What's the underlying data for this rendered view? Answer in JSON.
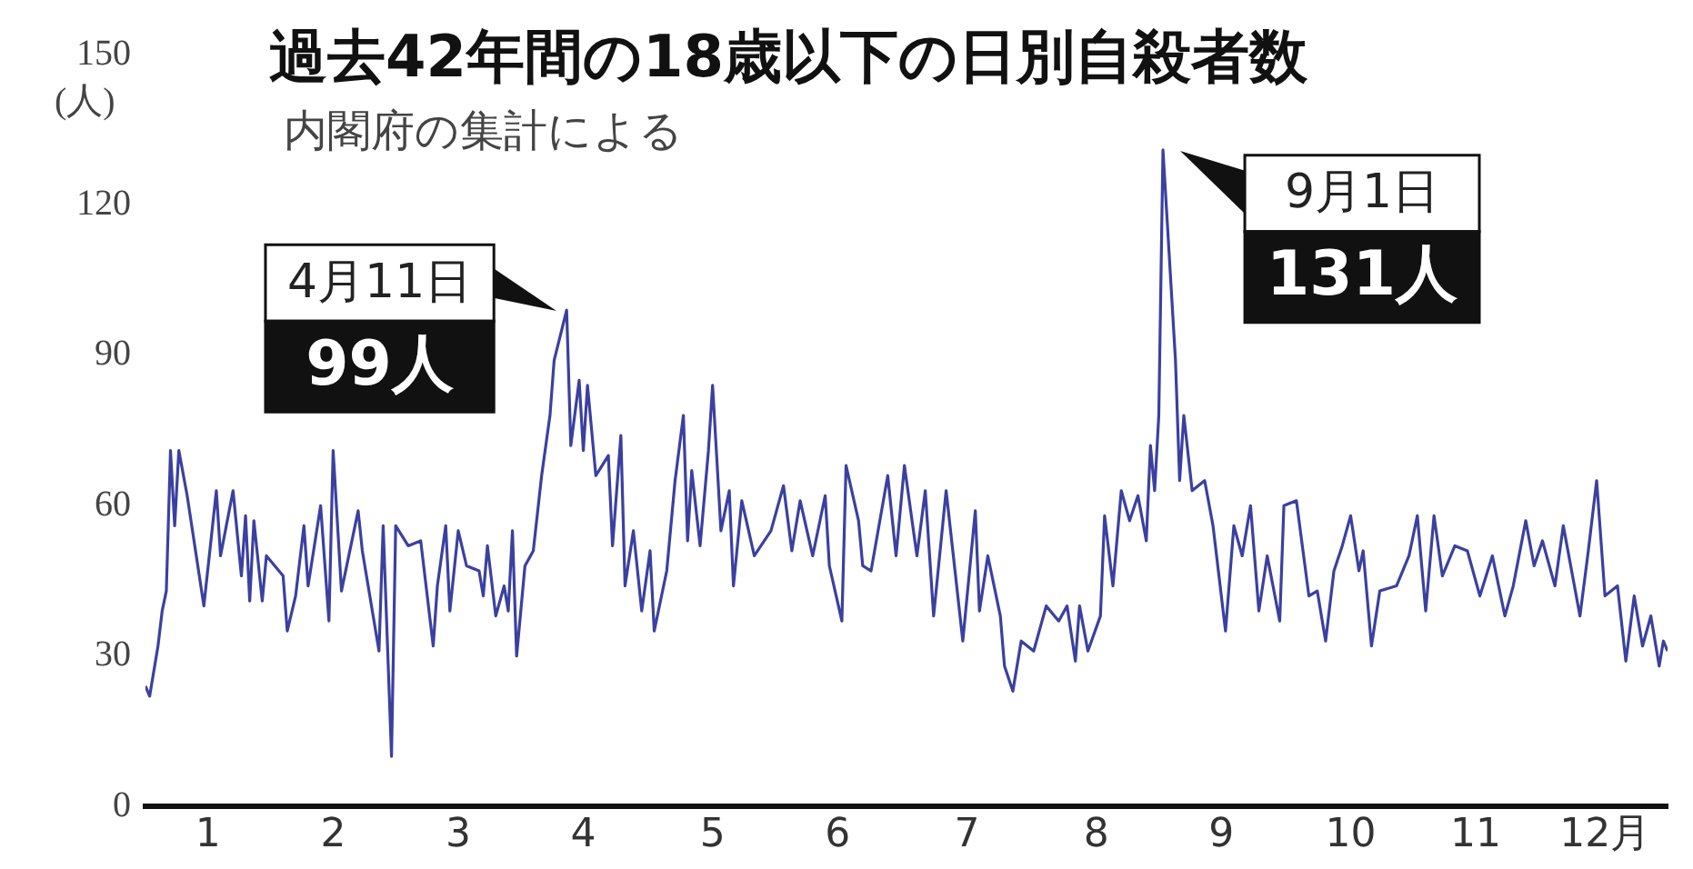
{
  "chart_data": {
    "type": "line",
    "title": "過去42年間の18歳以下の日別自殺者数",
    "subtitle": "内閣府の集計による",
    "ylabel": "(人)",
    "x": [
      "--01-01",
      "--01-02",
      "--01-04",
      "--01-05",
      "--01-06",
      "--01-07",
      "--01-08",
      "--01-09",
      "--01-11",
      "--01-15",
      "--01-18",
      "--01-19",
      "--01-22",
      "--01-24",
      "--01-25",
      "--01-26",
      "--01-27",
      "--01-29",
      "--01-30",
      "--02-03",
      "--02-04",
      "--02-06",
      "--02-08",
      "--02-09",
      "--02-12",
      "--02-14",
      "--02-15",
      "--02-17",
      "--02-21",
      "--02-22",
      "--02-26",
      "--02-27",
      "--02-29",
      "--03-01",
      "--03-04",
      "--03-07",
      "--03-10",
      "--03-11",
      "--03-13",
      "--03-14",
      "--03-16",
      "--03-18",
      "--03-21",
      "--03-22",
      "--03-23",
      "--03-25",
      "--03-27",
      "--03-28",
      "--03-29",
      "--03-30",
      "--04-01",
      "--04-03",
      "--04-05",
      "--04-07",
      "--04-08",
      "--04-11",
      "--04-12",
      "--04-14",
      "--04-15",
      "--04-16",
      "--04-18",
      "--04-21",
      "--04-22",
      "--04-24",
      "--04-25",
      "--04-27",
      "--04-29",
      "--05-01",
      "--05-02",
      "--05-05",
      "--05-07",
      "--05-09",
      "--05-10",
      "--05-11",
      "--05-13",
      "--05-15",
      "--05-16",
      "--05-18",
      "--05-20",
      "--05-21",
      "--05-23",
      "--05-26",
      "--05-30",
      "--06-02",
      "--06-04",
      "--06-06",
      "--06-09",
      "--06-12",
      "--06-13",
      "--06-16",
      "--06-17",
      "--06-20",
      "--06-21",
      "--06-23",
      "--06-27",
      "--06-29",
      "--07-01",
      "--07-04",
      "--07-06",
      "--07-08",
      "--07-11",
      "--07-15",
      "--07-18",
      "--07-19",
      "--07-21",
      "--07-24",
      "--07-25",
      "--07-27",
      "--07-29",
      "--08-01",
      "--08-04",
      "--08-07",
      "--08-09",
      "--08-11",
      "--08-12",
      "--08-14",
      "--08-17",
      "--08-18",
      "--08-20",
      "--08-22",
      "--08-24",
      "--08-26",
      "--08-28",
      "--08-29",
      "--08-30",
      "--08-31",
      "--09-01",
      "--09-04",
      "--09-05",
      "--09-06",
      "--09-08",
      "--09-11",
      "--09-13",
      "--09-16",
      "--09-18",
      "--09-20",
      "--09-22",
      "--09-24",
      "--09-26",
      "--09-29",
      "--09-30",
      "--10-03",
      "--10-06",
      "--10-08",
      "--10-10",
      "--10-12",
      "--10-14",
      "--10-16",
      "--10-18",
      "--10-19",
      "--10-21",
      "--10-23",
      "--10-27",
      "--10-30",
      "--11-01",
      "--11-03",
      "--11-05",
      "--11-07",
      "--11-10",
      "--11-13",
      "--11-16",
      "--11-19",
      "--11-22",
      "--11-24",
      "--11-27",
      "--11-29",
      "--12-01",
      "--12-04",
      "--12-06",
      "--12-08",
      "--12-10",
      "--12-12",
      "--12-14",
      "--12-16",
      "--12-19",
      "--12-21",
      "--12-23",
      "--12-25",
      "--12-27",
      "--12-29",
      "--12-30",
      "--12-31"
    ],
    "series": [
      {
        "color": "#3b40a0",
        "values": [
          24,
          22,
          32,
          39,
          43,
          71,
          56,
          71,
          62,
          40,
          63,
          50,
          63,
          46,
          58,
          41,
          57,
          41,
          50,
          46,
          35,
          42,
          56,
          44,
          60,
          37,
          71,
          43,
          59,
          51,
          31,
          56,
          10,
          56,
          52,
          53,
          32,
          44,
          56,
          39,
          55,
          48,
          47,
          42,
          52,
          38,
          44,
          39,
          55,
          30,
          48,
          51,
          66,
          78,
          89,
          99,
          72,
          85,
          71,
          84,
          66,
          70,
          52,
          74,
          44,
          55,
          39,
          51,
          35,
          47,
          65,
          78,
          53,
          67,
          52,
          71,
          84,
          55,
          63,
          44,
          61,
          50,
          55,
          64,
          51,
          61,
          50,
          62,
          48,
          37,
          68,
          57,
          48,
          47,
          66,
          50,
          68,
          50,
          63,
          38,
          63,
          33,
          59,
          39,
          50,
          38,
          28,
          23,
          33,
          31,
          40,
          37,
          40,
          29,
          40,
          31,
          38,
          58,
          44,
          63,
          57,
          62,
          53,
          72,
          63,
          78,
          131,
          89,
          65,
          78,
          63,
          65,
          56,
          35,
          56,
          50,
          60,
          39,
          50,
          37,
          60,
          61,
          42,
          43,
          33,
          47,
          52,
          58,
          47,
          51,
          32,
          43,
          44,
          50,
          58,
          39,
          58,
          46,
          52,
          51,
          42,
          50,
          38,
          44,
          57,
          48,
          53,
          44,
          56,
          47,
          38,
          51,
          65,
          42,
          44,
          29,
          42,
          32,
          38,
          28,
          33,
          31
        ]
      }
    ],
    "xlim": [
      "--01-01",
      "--12-31"
    ],
    "xticks": [
      {
        "value": "--01-16",
        "label": "1"
      },
      {
        "value": "--02-15",
        "label": "2"
      },
      {
        "value": "--03-16",
        "label": "3"
      },
      {
        "value": "--04-15",
        "label": "4"
      },
      {
        "value": "--05-16",
        "label": "5"
      },
      {
        "value": "--06-15",
        "label": "6"
      },
      {
        "value": "--07-16",
        "label": "7"
      },
      {
        "value": "--08-16",
        "label": "8"
      },
      {
        "value": "--09-15",
        "label": "9"
      },
      {
        "value": "--10-16",
        "label": "10"
      },
      {
        "value": "--11-15",
        "label": "11"
      },
      {
        "value": "--12-16",
        "label": "12月"
      }
    ],
    "ylim": [
      0,
      150
    ],
    "yticks": [
      0,
      30,
      60,
      90,
      120,
      150
    ],
    "grid": false,
    "legend": false,
    "marker": "none",
    "line_style": "solid",
    "annotations": [
      {
        "text": "4月11日",
        "x": "--04-11",
        "y": 99
      },
      {
        "text": "99人",
        "x": "--04-11",
        "y": 99
      },
      {
        "text": "9月1日",
        "x": "--09-01",
        "y": 131
      },
      {
        "text": "131人",
        "x": "--09-01",
        "y": 131
      }
    ]
  }
}
